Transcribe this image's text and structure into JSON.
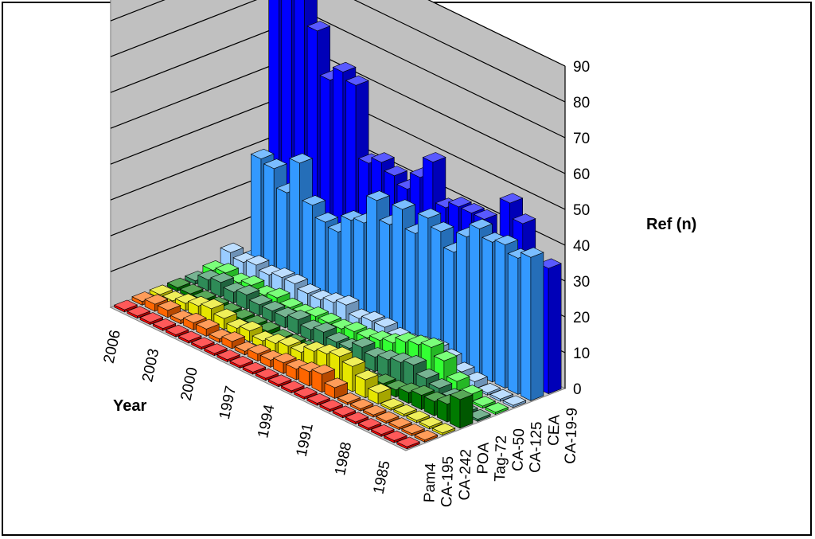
{
  "chart_data": {
    "type": "bar",
    "subtype": "3d-column",
    "title": "",
    "xlabel": "Year",
    "zlabel": "Ref (n)",
    "z_ticks": [
      "0",
      "10",
      "20",
      "30",
      "40",
      "50",
      "60",
      "70",
      "80",
      "90"
    ],
    "zlim": [
      0,
      90
    ],
    "year_ticks": [
      "1985",
      "1988",
      "1991",
      "1994",
      "1997",
      "2000",
      "2003",
      "2006"
    ],
    "years": [
      1985,
      1986,
      1987,
      1988,
      1989,
      1990,
      1991,
      1992,
      1993,
      1994,
      1995,
      1996,
      1997,
      1998,
      1999,
      2000,
      2001,
      2002,
      2003,
      2004,
      2005,
      2006,
      2007
    ],
    "series": [
      {
        "name": "Pam4",
        "color": "#ff0000",
        "values": [
          0,
          0,
          0,
          0,
          0,
          0,
          0,
          0,
          0,
          0,
          0,
          0,
          0,
          0,
          0,
          0,
          0,
          0,
          0,
          0,
          0,
          0,
          0
        ]
      },
      {
        "name": "CA-195",
        "color": "#ff6600",
        "values": [
          0,
          0,
          0,
          0,
          0,
          0,
          0,
          3,
          5,
          4,
          3,
          3,
          2,
          2,
          1,
          2,
          1,
          2,
          2,
          1,
          2,
          2,
          1
        ]
      },
      {
        "name": "CA-242",
        "color": "#e6e600",
        "values": [
          0,
          0,
          0,
          0,
          0,
          3,
          5,
          7,
          8,
          7,
          6,
          4,
          4,
          3,
          2,
          3,
          2,
          3,
          4,
          3,
          2,
          1,
          1
        ]
      },
      {
        "name": "POA",
        "color": "#007a00",
        "values": [
          8,
          5,
          4,
          4,
          3,
          2,
          2,
          1,
          1,
          1,
          0,
          1,
          1,
          1,
          0,
          1,
          1,
          1,
          1,
          1,
          1,
          1,
          1
        ]
      },
      {
        "name": "Tag-72",
        "color": "#2e8b57",
        "values": [
          0,
          0,
          3,
          4,
          5,
          7,
          6,
          5,
          4,
          5,
          3,
          3,
          4,
          3,
          4,
          3,
          3,
          3,
          4,
          3,
          4,
          3,
          1
        ]
      },
      {
        "name": "CA-50",
        "color": "#33ff33",
        "values": [
          0,
          0,
          2,
          4,
          8,
          10,
          9,
          8,
          6,
          5,
          4,
          4,
          3,
          3,
          3,
          2,
          2,
          3,
          2,
          3,
          2,
          3,
          2
        ]
      },
      {
        "name": "CA-125",
        "color": "#99ccff",
        "values": [
          0,
          0,
          0,
          2,
          3,
          5,
          6,
          5,
          4,
          4,
          5,
          5,
          4,
          6,
          5,
          4,
          4,
          5,
          5,
          4,
          5,
          4,
          5
        ]
      },
      {
        "name": "CEA",
        "color": "#3399ff",
        "values": [
          40,
          38,
          40,
          39,
          41,
          37,
          31,
          35,
          37,
          31,
          36,
          30,
          35,
          27,
          26,
          21,
          22,
          25,
          35,
          25,
          30,
          31,
          1
        ]
      },
      {
        "name": "CA-19-9",
        "color": "#0000ff",
        "values": [
          35,
          32,
          44,
          48,
          28,
          40,
          40,
          40,
          38,
          49,
          43,
          38,
          40,
          42,
          40,
          60,
          62,
          58,
          70,
          80,
          79,
          90,
          1
        ]
      }
    ],
    "grid": true,
    "wall_color": "#c0c0c0"
  }
}
